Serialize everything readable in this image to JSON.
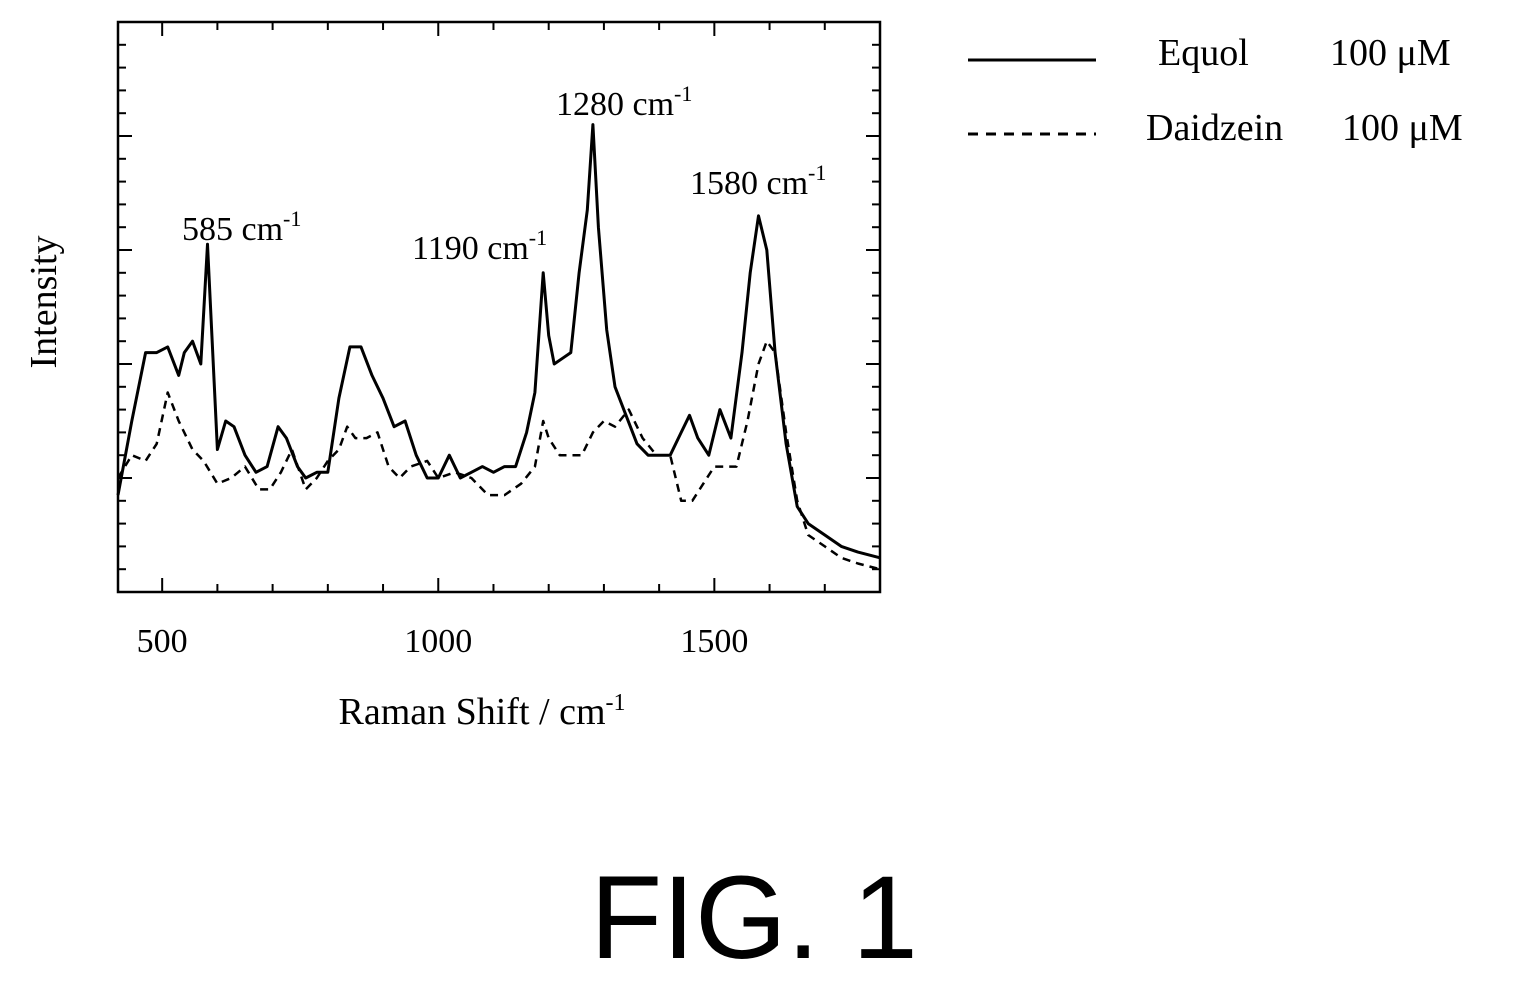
{
  "figure_label": "FIG. 1",
  "chart_data": {
    "type": "line",
    "xlabel": "Raman Shift / cm",
    "xlabel_sup": "-1",
    "ylabel": "Intensity",
    "xlim": [
      420,
      1800
    ],
    "ylim": [
      0,
      1.0
    ],
    "x_ticks": [
      500,
      1000,
      1500
    ],
    "y_ticks_shown": false,
    "grid": false,
    "legend_position": "top-right, outside plot",
    "series": [
      {
        "name": "Equol",
        "concentration": "100 μM",
        "style": "solid",
        "color": "#000000",
        "x": [
          420,
          445,
          470,
          490,
          510,
          530,
          540,
          555,
          570,
          582,
          590,
          600,
          615,
          630,
          650,
          670,
          690,
          710,
          725,
          745,
          760,
          780,
          800,
          820,
          840,
          860,
          880,
          900,
          920,
          940,
          960,
          980,
          1000,
          1020,
          1040,
          1060,
          1080,
          1100,
          1120,
          1140,
          1160,
          1175,
          1190,
          1200,
          1210,
          1225,
          1240,
          1255,
          1270,
          1280,
          1290,
          1305,
          1320,
          1340,
          1360,
          1380,
          1400,
          1420,
          1440,
          1455,
          1470,
          1490,
          1510,
          1530,
          1550,
          1565,
          1580,
          1595,
          1610,
          1630,
          1650,
          1670,
          1700,
          1730,
          1760,
          1800
        ],
        "y": [
          0.17,
          0.3,
          0.42,
          0.42,
          0.43,
          0.38,
          0.42,
          0.44,
          0.4,
          0.61,
          0.45,
          0.25,
          0.3,
          0.29,
          0.24,
          0.21,
          0.22,
          0.29,
          0.27,
          0.22,
          0.2,
          0.21,
          0.21,
          0.34,
          0.43,
          0.43,
          0.38,
          0.34,
          0.29,
          0.3,
          0.24,
          0.2,
          0.2,
          0.24,
          0.2,
          0.21,
          0.22,
          0.21,
          0.22,
          0.22,
          0.28,
          0.35,
          0.56,
          0.45,
          0.4,
          0.41,
          0.42,
          0.56,
          0.67,
          0.82,
          0.64,
          0.46,
          0.36,
          0.31,
          0.26,
          0.24,
          0.24,
          0.24,
          0.28,
          0.31,
          0.27,
          0.24,
          0.32,
          0.27,
          0.42,
          0.56,
          0.66,
          0.6,
          0.42,
          0.26,
          0.15,
          0.12,
          0.1,
          0.08,
          0.07,
          0.06
        ]
      },
      {
        "name": "Daidzein",
        "concentration": "100 μM",
        "style": "dashed",
        "color": "#000000",
        "x": [
          420,
          445,
          470,
          490,
          510,
          530,
          555,
          575,
          600,
          625,
          650,
          675,
          695,
          715,
          735,
          760,
          780,
          800,
          820,
          835,
          850,
          870,
          890,
          910,
          930,
          950,
          980,
          1000,
          1030,
          1060,
          1090,
          1120,
          1150,
          1175,
          1190,
          1200,
          1220,
          1240,
          1260,
          1280,
          1300,
          1320,
          1345,
          1370,
          1395,
          1420,
          1440,
          1460,
          1480,
          1500,
          1520,
          1540,
          1560,
          1580,
          1595,
          1610,
          1630,
          1650,
          1670,
          1700,
          1730,
          1760,
          1800
        ],
        "y": [
          0.2,
          0.24,
          0.23,
          0.26,
          0.35,
          0.3,
          0.25,
          0.23,
          0.19,
          0.2,
          0.22,
          0.18,
          0.18,
          0.21,
          0.25,
          0.18,
          0.2,
          0.23,
          0.25,
          0.29,
          0.27,
          0.27,
          0.28,
          0.22,
          0.2,
          0.22,
          0.23,
          0.2,
          0.21,
          0.2,
          0.17,
          0.17,
          0.19,
          0.22,
          0.3,
          0.27,
          0.24,
          0.24,
          0.24,
          0.28,
          0.3,
          0.29,
          0.32,
          0.27,
          0.24,
          0.24,
          0.16,
          0.16,
          0.19,
          0.22,
          0.22,
          0.22,
          0.3,
          0.4,
          0.44,
          0.42,
          0.28,
          0.16,
          0.1,
          0.08,
          0.06,
          0.05,
          0.04
        ]
      }
    ],
    "annotations": [
      {
        "text": "585 cm",
        "sup": "-1",
        "x": 585
      },
      {
        "text": "1190 cm",
        "sup": "-1",
        "x": 1190
      },
      {
        "text": "1280 cm",
        "sup": "-1",
        "x": 1280
      },
      {
        "text": "1580 cm",
        "sup": "-1",
        "x": 1580
      }
    ]
  }
}
